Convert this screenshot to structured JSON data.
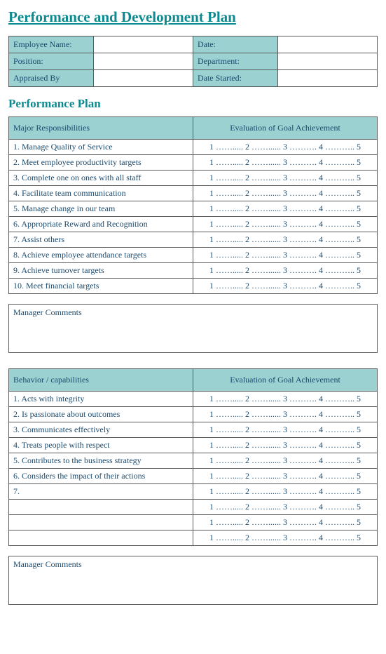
{
  "title": "Performance and Development Plan",
  "info": {
    "rows": [
      {
        "label1": "Employee Name:",
        "value1": "",
        "label2": "Date:",
        "value2": ""
      },
      {
        "label1": "Position:",
        "value1": "",
        "label2": "Department:",
        "value2": ""
      },
      {
        "label1": "Appraised By",
        "value1": "",
        "label2": "Date Started:",
        "value2": ""
      }
    ]
  },
  "section_heading": "Performance Plan",
  "responsibilities": {
    "header_left": "Major Responsibilities",
    "header_right": "Evaluation of Goal Achievement",
    "scale_text": "1 ……..... 2 ……...... 3 ………. 4 ……….. 5",
    "items": [
      "1. Manage Quality of Service",
      "2. Meet employee productivity targets",
      "3. Complete one on ones with all staff",
      "4. Facilitate team communication",
      "5. Manage change in our team",
      "6. Appropriate Reward and Recognition",
      "7. Assist others",
      "8. Achieve employee attendance targets",
      "9. Achieve turnover targets",
      "10. Meet financial targets"
    ],
    "comments_label": "Manager Comments"
  },
  "behaviors": {
    "header_left": "Behavior / capabilities",
    "header_right": "Evaluation of Goal Achievement",
    "scale_text": "1 ……..... 2 ……...... 3 ………. 4 ……….. 5",
    "items": [
      "1. Acts with integrity",
      "2. Is passionate about outcomes",
      "3. Communicates effectively",
      "4. Treats people with respect",
      "5. Contributes to the business strategy",
      "6. Considers the impact of their actions",
      "7.",
      "",
      "",
      ""
    ],
    "comments_label": "Manager Comments"
  },
  "style": {
    "header_bg": "#9bd1d1",
    "border_color": "#5a5a5a",
    "text_color": "#1a4a6e",
    "heading_color": "#0b8a8f",
    "page_bg": "#ffffff",
    "title_fontsize": 21,
    "section_fontsize": 17,
    "body_fontsize": 12
  }
}
